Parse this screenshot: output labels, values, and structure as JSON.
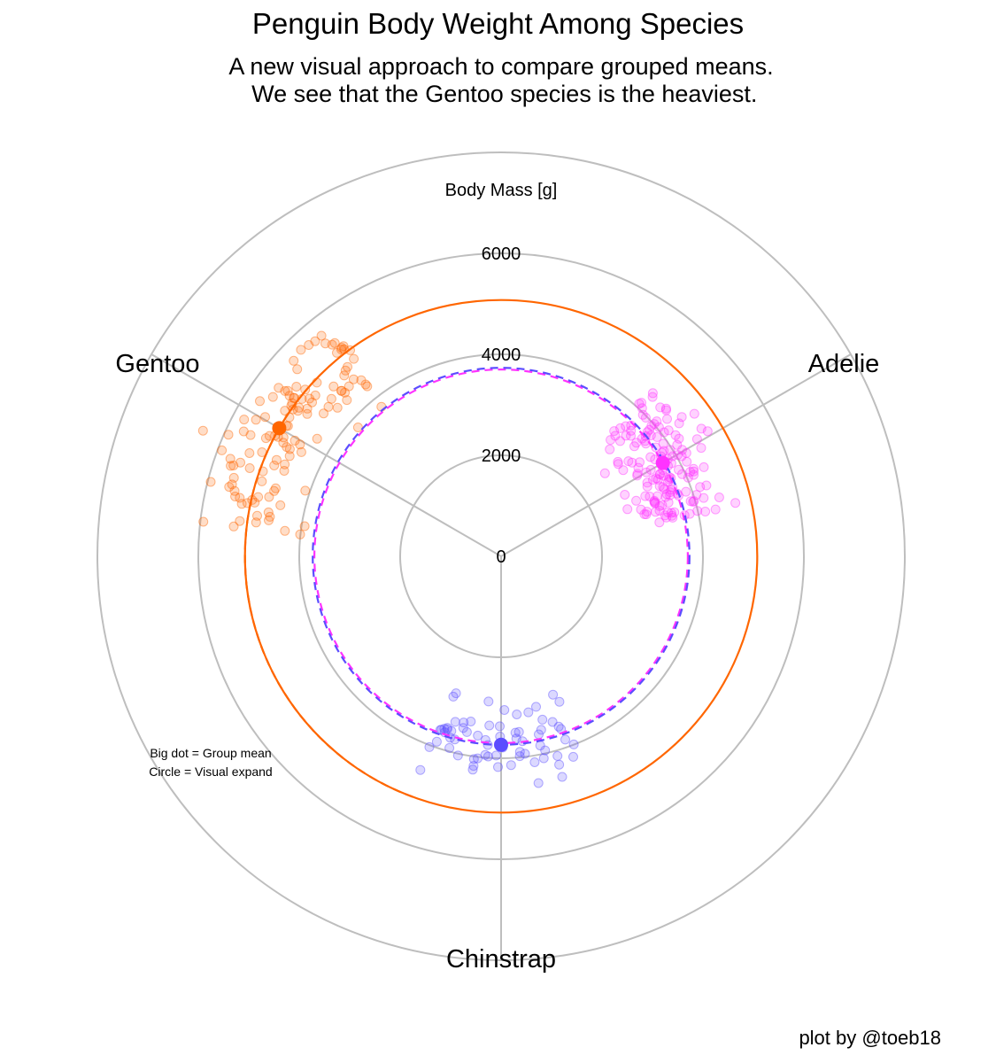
{
  "chart_data": {
    "type": "polar-scatter",
    "title": "Penguin Body Weight Among Species",
    "subtitle_lines": [
      "A new visual approach to compare grouped means.",
      " We see that the Gentoo species is the heaviest."
    ],
    "radial_axis": {
      "label": "Body Mass [g]",
      "range": [
        0,
        8000
      ],
      "ticks": [
        0,
        2000,
        4000,
        6000
      ],
      "tick_labels": [
        "0",
        "2000",
        "4000",
        "6000"
      ],
      "grid_circles": [
        0,
        2000,
        4000,
        6000,
        8000
      ]
    },
    "categories": [
      "Adelie",
      "Chinstrap",
      "Gentoo"
    ],
    "category_angles_deg": [
      60,
      180,
      300
    ],
    "series": [
      {
        "name": "Adelie",
        "color": "#ff33ff",
        "mean": 3700,
        "n": 152,
        "spread_deg": 18,
        "sd": 460
      },
      {
        "name": "Chinstrap",
        "color": "#5c4dff",
        "mean": 3733,
        "n": 68,
        "spread_deg": 22,
        "sd": 380
      },
      {
        "name": "Gentoo",
        "color": "#ff6600",
        "mean": 5076,
        "n": 124,
        "spread_deg": 24,
        "sd": 500
      }
    ],
    "reference_circles": [
      {
        "value": 5076,
        "color": "#ff6600",
        "style": "solid"
      },
      {
        "value": 3700,
        "color": "#ff33ff",
        "style": "dashed"
      },
      {
        "value": 3733,
        "color": "#5c4dff",
        "style": "dashed"
      }
    ],
    "expand_arc": {
      "value": 5076,
      "from_deg": 200,
      "to_deg": 300,
      "color": "#ff6600",
      "style": "dashed"
    },
    "annotations": [
      "Big dot = Group mean",
      "Circle = Visual expand"
    ],
    "colors": {
      "grid": "#bebebe",
      "text": "#000000"
    }
  },
  "caption": "plot by @toeb18"
}
